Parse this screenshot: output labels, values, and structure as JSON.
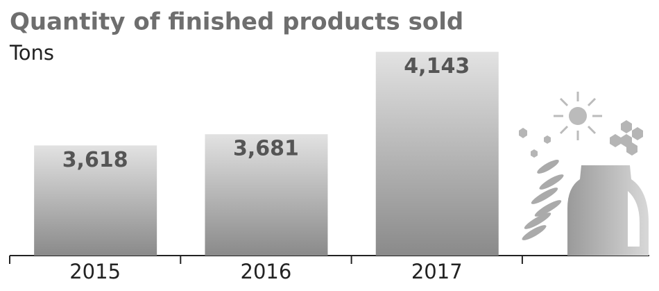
{
  "chart_data": {
    "type": "bar",
    "title": "Quantity of finished products sold",
    "subtitle": "Tons",
    "categories": [
      "2015",
      "2016",
      "2017"
    ],
    "values": [
      3618,
      3681,
      4143
    ],
    "value_labels": [
      "3,618",
      "3,681",
      "4,143"
    ],
    "color": "#8a8a8a",
    "ylim": [
      3000,
      4200
    ]
  }
}
